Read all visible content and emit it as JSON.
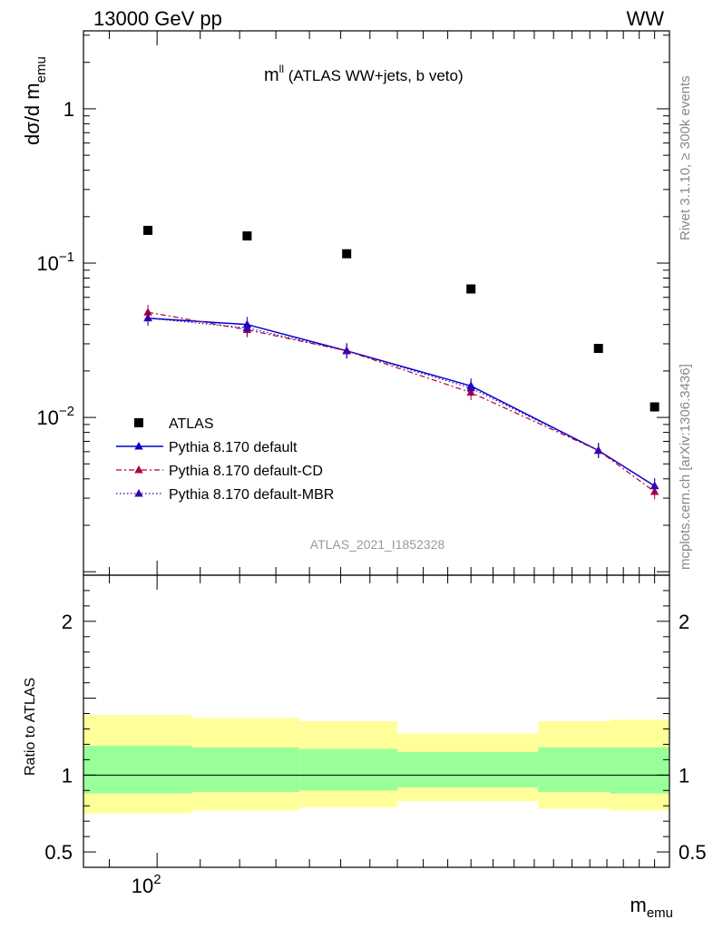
{
  "header": {
    "left": "13000 GeV pp",
    "right": "WW"
  },
  "side_text": {
    "top": "Rivet 3.1.10, ≥ 300k events",
    "bottom": "mcplots.cern.ch [arXiv:1306.3436]"
  },
  "watermark": "ATLAS_2021_I1852328",
  "chart_data": [
    {
      "type": "scatter",
      "title_main": "m",
      "title_sup": "ll",
      "title_rest": " (ATLAS WW+jets, b veto)",
      "ylabel_main": "dσ/d m",
      "ylabel_sub": "emu",
      "xscale": "log",
      "yscale": "log",
      "xlim": [
        85,
        310
      ],
      "ylim": [
        0.00095,
        3.2
      ],
      "yticks": [
        {
          "value": 1,
          "base": "1",
          "exp": ""
        },
        {
          "value": 0.1,
          "base": "10",
          "exp": "−1"
        },
        {
          "value": 0.01,
          "base": "10",
          "exp": "−2"
        }
      ],
      "xticks": [
        {
          "value": 100,
          "base": "10",
          "exp": "2"
        }
      ],
      "x": [
        98,
        122,
        152,
        200,
        265,
        300
      ],
      "series": [
        {
          "name": "ATLAS",
          "marker": "square",
          "color": "#000000",
          "line": "none",
          "values": [
            0.163,
            0.15,
            0.115,
            0.068,
            0.028,
            0.0117
          ]
        },
        {
          "name": "Pythia 8.170 default",
          "marker": "triangle",
          "color": "#0000cc",
          "line": "solid",
          "values": [
            0.044,
            0.04,
            0.027,
            0.016,
            0.0061,
            0.0036
          ]
        },
        {
          "name": "Pythia 8.170 default-CD",
          "marker": "triangle",
          "color": "#b0003a",
          "line": "dashdot",
          "values": [
            0.048,
            0.037,
            0.027,
            0.0145,
            0.0061,
            0.0033
          ]
        },
        {
          "name": "Pythia 8.170 default-MBR",
          "marker": "triangle",
          "color": "#3a00b0",
          "line": "dotted",
          "values": [
            0.044,
            0.038,
            0.027,
            0.0155,
            0.0061,
            0.0036
          ]
        }
      ],
      "legend_position": "lower-left"
    },
    {
      "type": "area",
      "ylabel": "Ratio to ATLAS",
      "xscale": "log",
      "ylim": [
        0.4,
        2.3
      ],
      "yticks": [
        {
          "value": 2,
          "label": "2"
        },
        {
          "value": 1,
          "label": "1"
        },
        {
          "value": 0.5,
          "label": "0.5"
        }
      ],
      "xticks": [
        {
          "value": 100,
          "base": "10",
          "exp": "2"
        }
      ],
      "xlabel_main": "m",
      "xlabel_sub": "emu",
      "bin_edges": [
        85,
        108,
        137,
        170,
        232,
        272,
        310
      ],
      "band_inner": [
        [
          0.88,
          1.19
        ],
        [
          0.89,
          1.18
        ],
        [
          0.9,
          1.17
        ],
        [
          0.92,
          1.15
        ],
        [
          0.89,
          1.18
        ],
        [
          0.88,
          1.18
        ]
      ],
      "band_outer": [
        [
          0.75,
          1.39
        ],
        [
          0.77,
          1.37
        ],
        [
          0.79,
          1.35
        ],
        [
          0.83,
          1.27
        ],
        [
          0.78,
          1.35
        ],
        [
          0.77,
          1.36
        ]
      ],
      "inner_color": "#99ff99",
      "outer_color": "#ffff99"
    }
  ]
}
